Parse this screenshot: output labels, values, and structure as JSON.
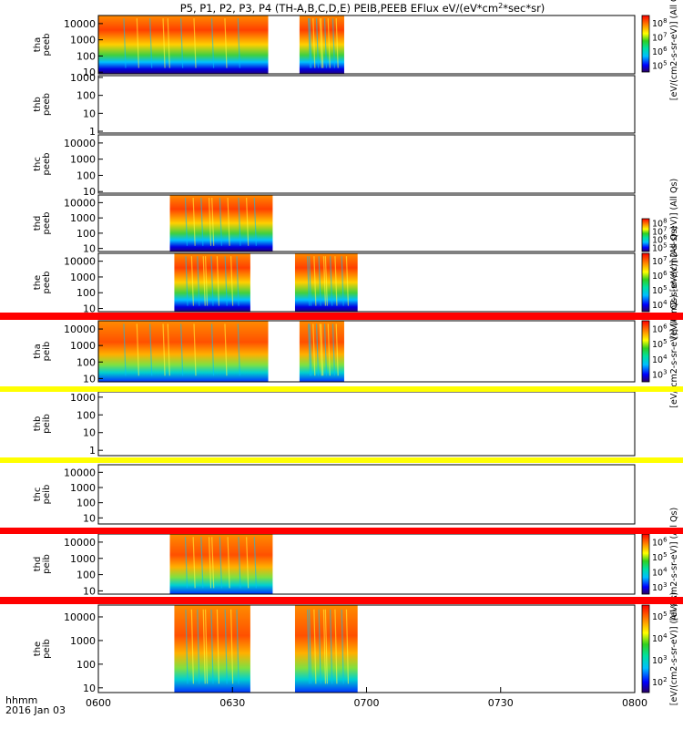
{
  "chart_data": {
    "type": "heatmap",
    "title": "P5, P1, P2, P3, P4 (TH-A,B,C,D,E) PEIB,PEEB EFlux eV/(eV*cm",
    "title_sup": "2",
    "title_tail": "*sec*sr)",
    "x_ticks": [
      "0600",
      "0630",
      "0700",
      "0730",
      "0800"
    ],
    "x_range_minutes": [
      0,
      120
    ],
    "x_axis_unit_label": "hhmm",
    "date_label": "2016 Jan 03",
    "colormap": "rainbow",
    "panels": [
      {
        "ylabel": [
          "tha",
          "peeb"
        ],
        "y_ticks": [
          "10000",
          "1000",
          "100",
          "10"
        ],
        "y_decades_top": 4.5,
        "y_decades_bottom": 0.9,
        "data_intervals_minutes": [
          [
            0,
            38
          ],
          [
            45,
            55
          ]
        ],
        "colorbar": {
          "label": "[eV/(cm2-s-sr-eV)] (All Qs)",
          "ticks": [
            "10^8",
            "10^7",
            "10^6",
            "10^5"
          ]
        }
      },
      {
        "ylabel": [
          "thb",
          "peeb"
        ],
        "y_ticks": [
          "1000",
          "100",
          "10",
          "1"
        ],
        "y_decades_top": 3.1,
        "y_decades_bottom": -0.1,
        "data_intervals_minutes": [],
        "colorbar": null
      },
      {
        "ylabel": [
          "thc",
          "peeb"
        ],
        "y_ticks": [
          "10000",
          "1000",
          "100",
          "10"
        ],
        "y_decades_top": 4.5,
        "y_decades_bottom": 0.9,
        "data_intervals_minutes": [],
        "colorbar": null
      },
      {
        "ylabel": [
          "thd",
          "peeb"
        ],
        "y_ticks": [
          "10000",
          "1000",
          "100",
          "10"
        ],
        "y_decades_top": 4.5,
        "y_decades_bottom": 0.8,
        "data_intervals_minutes": [
          [
            16,
            39
          ]
        ],
        "colorbar": {
          "label": "[eV/(cm2-s-sr-eV)] (All Qs)",
          "ticks": [
            "10^8",
            "10^7",
            "10^6",
            "10^5"
          ]
        }
      },
      {
        "ylabel": [
          "the",
          "peeb"
        ],
        "y_ticks": [
          "10000",
          "1000",
          "100",
          "10"
        ],
        "y_decades_top": 4.5,
        "y_decades_bottom": 0.8,
        "data_intervals_minutes": [
          [
            17,
            34
          ],
          [
            44,
            58
          ]
        ],
        "colorbar": {
          "label": "[eV/(cm2-s-sr-eV)] (All Qs)",
          "ticks": [
            "10^7",
            "10^6",
            "10^5",
            "10^4"
          ]
        }
      },
      {
        "ylabel": [
          "tha",
          "peib"
        ],
        "y_ticks": [
          "10000",
          "1000",
          "100",
          "10"
        ],
        "y_decades_top": 4.5,
        "y_decades_bottom": 0.8,
        "data_intervals_minutes": [
          [
            0,
            38
          ],
          [
            45,
            55
          ]
        ],
        "colorbar": {
          "label": "[eV/(cm2-s-sr-eV)] (All Qs)",
          "ticks": [
            "10^6",
            "10^5",
            "10^4",
            "10^3"
          ]
        }
      },
      {
        "ylabel": [
          "thb",
          "peib"
        ],
        "y_ticks": [
          "1000",
          "100",
          "10",
          "1"
        ],
        "y_decades_top": 3.3,
        "y_decades_bottom": -0.3,
        "data_intervals_minutes": [],
        "colorbar": null
      },
      {
        "ylabel": [
          "thc",
          "peib"
        ],
        "y_ticks": [
          "10000",
          "1000",
          "100",
          "10"
        ],
        "y_decades_top": 4.5,
        "y_decades_bottom": 0.6,
        "data_intervals_minutes": [],
        "colorbar": {
          "label": "[eV/(cm2-s-sr-eV)] (All Qs)",
          "ticks": []
        }
      },
      {
        "ylabel": [
          "thd",
          "peib"
        ],
        "y_ticks": [
          "10000",
          "1000",
          "100",
          "10"
        ],
        "y_decades_top": 4.5,
        "y_decades_bottom": 0.8,
        "data_intervals_minutes": [
          [
            16,
            39
          ]
        ],
        "colorbar": {
          "label": "[eV/(cm2-s-sr-eV)] (All Qs)",
          "ticks": [
            "10^6",
            "10^5",
            "10^4",
            "10^3"
          ]
        }
      },
      {
        "ylabel": [
          "the",
          "peib"
        ],
        "y_ticks": [
          "10000",
          "1000",
          "100",
          "10"
        ],
        "y_decades_top": 4.5,
        "y_decades_bottom": 0.8,
        "data_intervals_minutes": [
          [
            17,
            34
          ],
          [
            44,
            58
          ]
        ],
        "colorbar": {
          "label": "[eV/(cm2-s-sr-eV)] (All Qs)",
          "ticks": [
            "10^5",
            "10^4",
            "10^3",
            "10^2"
          ]
        }
      }
    ]
  }
}
